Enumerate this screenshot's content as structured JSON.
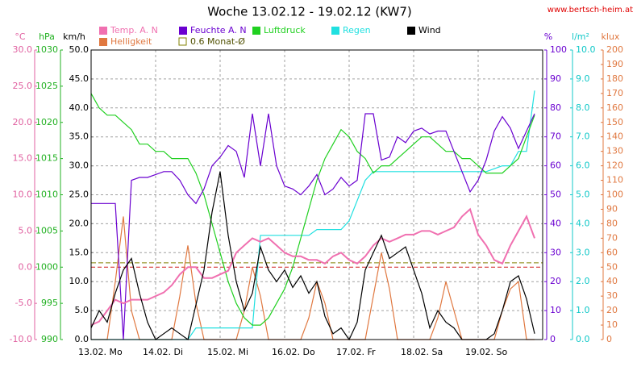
{
  "chart_data": {
    "type": "line",
    "title": "Woche 13.02.12 - 19.02.12 (KW7)",
    "source": "www.bertsch-heim.at",
    "categories": [
      "13.02. Mo",
      null,
      null,
      null,
      null,
      null,
      null,
      null,
      "14.02. Di",
      null,
      null,
      null,
      null,
      null,
      null,
      null,
      "15.02. Mi",
      null,
      null,
      null,
      null,
      null,
      null,
      null,
      "16.02. Do",
      null,
      null,
      null,
      null,
      null,
      null,
      null,
      "17.02. Fr",
      null,
      null,
      null,
      null,
      null,
      null,
      null,
      "18.02. Sa",
      null,
      null,
      null,
      null,
      null,
      null,
      null,
      "19.02. So",
      null,
      null,
      null,
      null,
      null,
      null,
      null
    ],
    "grid": true,
    "axes": [
      {
        "id": "temp",
        "unit": "°C",
        "side": "left",
        "color": "#e060a0",
        "lim": [
          -10,
          30
        ],
        "ticks": [
          {
            "value": -10,
            "label": "-10.0"
          },
          {
            "value": -5,
            "label": "-5.0"
          },
          {
            "value": 0,
            "label": "0.0"
          },
          {
            "value": 5,
            "label": "5.0"
          },
          {
            "value": 10,
            "label": "10.0"
          },
          {
            "value": 15,
            "label": "15.0"
          },
          {
            "value": 20,
            "label": "20.0"
          },
          {
            "value": 25,
            "label": "25.0"
          },
          {
            "value": 30,
            "label": "30.0"
          }
        ]
      },
      {
        "id": "pressure",
        "unit": "hPa",
        "side": "left",
        "color": "#20b020",
        "lim": [
          990,
          1030
        ],
        "ticks": [
          990,
          995,
          1000,
          1005,
          1010,
          1015,
          1020,
          1025,
          1030
        ]
      },
      {
        "id": "wind",
        "unit": "km/h",
        "side": "left",
        "color": "#000000",
        "lim": [
          0,
          50
        ],
        "grid": true,
        "ticks": [
          {
            "value": 0,
            "label": "0.0"
          },
          {
            "value": 5,
            "label": "5.0"
          },
          {
            "value": 10,
            "label": "10.0"
          },
          {
            "value": 15,
            "label": "15.0"
          },
          {
            "value": 20,
            "label": "20.0"
          },
          {
            "value": 25,
            "label": "25.0"
          },
          {
            "value": 30,
            "label": "30.0"
          },
          {
            "value": 35,
            "label": "35.0"
          },
          {
            "value": 40,
            "label": "40.0"
          },
          {
            "value": 45,
            "label": "45.0"
          },
          {
            "value": 50,
            "label": "50.0"
          }
        ]
      },
      {
        "id": "humidity",
        "unit": "%",
        "side": "right",
        "color": "#6a00d0",
        "lim": [
          0,
          100
        ],
        "ticks": [
          0,
          10,
          20,
          30,
          40,
          50,
          60,
          70,
          80,
          90,
          100
        ]
      },
      {
        "id": "rain",
        "unit": "l/m²",
        "side": "right",
        "color": "#10c8c8",
        "lim": [
          0,
          10
        ],
        "ticks": [
          {
            "value": 0,
            "label": "0.0"
          },
          {
            "value": 1,
            "label": "1.0"
          },
          {
            "value": 2,
            "label": "2.0"
          },
          {
            "value": 3,
            "label": "3.0"
          },
          {
            "value": 4,
            "label": "4.0"
          },
          {
            "value": 5,
            "label": "5.0"
          },
          {
            "value": 6,
            "label": "6.0"
          },
          {
            "value": 7,
            "label": "7.0"
          },
          {
            "value": 8,
            "label": "8.0"
          },
          {
            "value": 9,
            "label": "9.0"
          },
          {
            "value": 10,
            "label": "10.0"
          }
        ]
      },
      {
        "id": "light",
        "unit": "klux",
        "side": "right",
        "color": "#e07840",
        "lim": [
          0,
          200
        ],
        "ticks": [
          0,
          10,
          20,
          30,
          40,
          50,
          60,
          70,
          80,
          90,
          100,
          110,
          120,
          130,
          140,
          150,
          160,
          170,
          180,
          190,
          200
        ]
      }
    ],
    "series": [
      {
        "name": "Temp. A. N",
        "color": "#f070b0",
        "axis": "temp",
        "values": [
          -8,
          -7.5,
          -6,
          -4.5,
          -5,
          -4.5,
          -4.5,
          -4.5,
          -4,
          -3.5,
          -2.5,
          -1,
          0,
          0,
          -1.5,
          -1.5,
          -1,
          -0.5,
          2,
          3,
          4,
          3.5,
          4,
          3,
          2,
          1.5,
          1.5,
          1,
          1,
          0.5,
          1.5,
          2,
          1,
          0.5,
          1.5,
          3,
          4,
          3.5,
          4,
          4.5,
          4.5,
          5,
          5,
          4.5,
          5,
          5.5,
          7,
          8,
          4.5,
          3,
          1,
          0.5,
          3,
          5,
          7,
          4
        ]
      },
      {
        "name": "Feuchte A. N",
        "color": "#6a00d0",
        "axis": "humidity",
        "values": [
          47,
          47,
          47,
          47,
          0,
          55,
          56,
          56,
          57,
          58,
          58,
          55,
          50,
          47,
          52,
          60,
          63,
          67,
          65,
          56,
          78,
          60,
          78,
          60,
          53,
          52,
          50,
          53,
          57,
          50,
          52,
          56,
          53,
          55,
          78,
          78,
          62,
          63,
          70,
          68,
          72,
          73,
          71,
          72,
          72,
          65,
          58,
          51,
          55,
          62,
          72,
          77,
          73,
          66,
          72,
          78
        ]
      },
      {
        "name": "Luftdruck",
        "color": "#20d020",
        "axis": "pressure",
        "values": [
          1024,
          1022,
          1021,
          1021,
          1020,
          1019,
          1017,
          1017,
          1016,
          1016,
          1015,
          1015,
          1015,
          1013,
          1010,
          1006,
          1002,
          998,
          995,
          993,
          992,
          992,
          993,
          995,
          997,
          1000,
          1004,
          1008,
          1012,
          1015,
          1017,
          1019,
          1018,
          1016,
          1015,
          1013,
          1014,
          1014,
          1015,
          1016,
          1017,
          1018,
          1018,
          1017,
          1016,
          1016,
          1015,
          1015,
          1014,
          1013,
          1013,
          1013,
          1014,
          1015,
          1018,
          1021
        ]
      },
      {
        "name": "Regen",
        "color": "#20e0e0",
        "axis": "rain",
        "values": [
          0,
          0,
          0,
          0,
          0,
          0,
          0,
          0,
          0,
          0,
          0,
          0,
          0,
          0.4,
          0.4,
          0.4,
          0.4,
          0.4,
          0.4,
          0.4,
          0.4,
          3.6,
          3.6,
          3.6,
          3.6,
          3.6,
          3.6,
          3.6,
          3.8,
          3.8,
          3.8,
          3.8,
          4.1,
          4.8,
          5.5,
          5.8,
          5.8,
          5.8,
          5.8,
          5.8,
          5.8,
          5.8,
          5.8,
          5.8,
          5.8,
          5.8,
          5.8,
          5.8,
          5.8,
          5.8,
          5.9,
          6.0,
          6.0,
          6.5,
          6.5,
          8.6
        ]
      },
      {
        "name": "Wind",
        "color": "#000000",
        "axis": "wind",
        "values": [
          2,
          5,
          3,
          8,
          12,
          14,
          8,
          3,
          0,
          1,
          2,
          1,
          0,
          6,
          12,
          22,
          29,
          18,
          10,
          5,
          8,
          16,
          12,
          10,
          12,
          9,
          11,
          8,
          10,
          4,
          1,
          2,
          0,
          3,
          12,
          15,
          18,
          14,
          15,
          16,
          12,
          8,
          2,
          5,
          3,
          2,
          0,
          0,
          0,
          0,
          1,
          5,
          10,
          11,
          7,
          1
        ]
      },
      {
        "name": "Helligkeit",
        "color": "#e07840",
        "axis": "light",
        "values": [
          0,
          0,
          0,
          40,
          85,
          20,
          0,
          0,
          0,
          0,
          0,
          30,
          65,
          25,
          0,
          0,
          0,
          0,
          0,
          20,
          50,
          30,
          0,
          0,
          0,
          0,
          0,
          15,
          40,
          25,
          0,
          0,
          0,
          0,
          0,
          30,
          60,
          35,
          0,
          0,
          0,
          0,
          0,
          15,
          40,
          20,
          0,
          0,
          0,
          0,
          0,
          20,
          35,
          40,
          0,
          0
        ]
      }
    ],
    "reference_lines": [
      {
        "name": "0.6 Monat-Ø",
        "value": 0.6,
        "axis": "temp",
        "color": "#808000"
      }
    ]
  }
}
